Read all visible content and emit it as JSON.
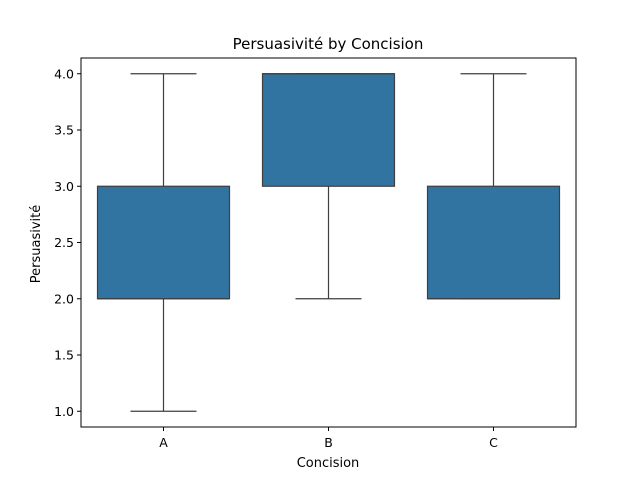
{
  "chart_data": {
    "type": "box",
    "title": "Persuasivité by Concision",
    "xlabel": "Concision",
    "ylabel": "Persuasivité",
    "categories": [
      "A",
      "B",
      "C"
    ],
    "ylim": [
      0.86,
      4.14
    ],
    "yticks": [
      "1.0",
      "1.5",
      "2.0",
      "2.5",
      "3.0",
      "3.5",
      "4.0"
    ],
    "boxes": [
      {
        "category": "A",
        "whisker_low": 1.0,
        "q1": 2.0,
        "median": 2.0,
        "q3": 3.0,
        "whisker_high": 4.0
      },
      {
        "category": "B",
        "whisker_low": 2.0,
        "q1": 3.0,
        "median": 4.0,
        "q3": 4.0,
        "whisker_high": 4.0
      },
      {
        "category": "C",
        "whisker_low": 2.0,
        "q1": 2.0,
        "median": 2.0,
        "q3": 3.0,
        "whisker_high": 4.0
      }
    ],
    "box_color": "#3274a1",
    "line_color": "#3f3f3f",
    "grid": false,
    "legend": "none"
  }
}
